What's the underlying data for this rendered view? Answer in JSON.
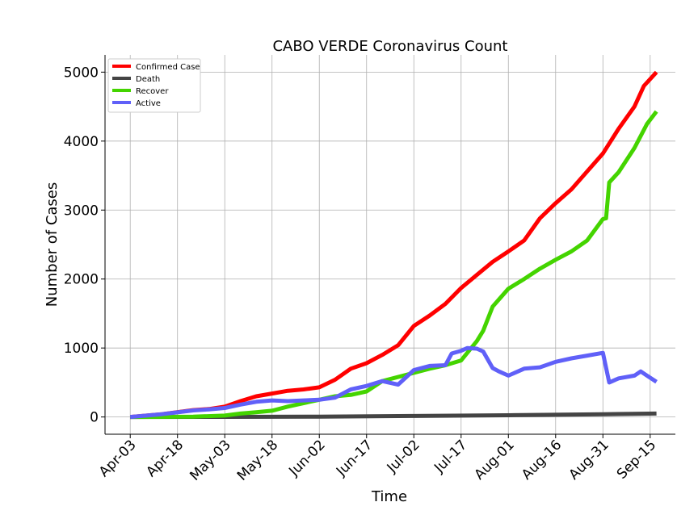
{
  "chart_data": {
    "type": "line",
    "title": "CABO VERDE Coronavirus Count",
    "xlabel": "Time",
    "ylabel": "Number of Cases",
    "x_tick_labels": [
      "Apr-03",
      "Apr-18",
      "May-03",
      "May-18",
      "Jun-02",
      "Jun-17",
      "Jul-02",
      "Jul-17",
      "Aug-01",
      "Aug-16",
      "Aug-31",
      "Sep-15"
    ],
    "x_tick_days": [
      0,
      15,
      30,
      45,
      60,
      75,
      90,
      105,
      120,
      135,
      150,
      165
    ],
    "xlim": [
      -8,
      173
    ],
    "ylim": [
      -250,
      5250
    ],
    "y_ticks": [
      0,
      1000,
      2000,
      3000,
      4000,
      5000
    ],
    "grid": true,
    "legend_position": "top-left",
    "series": [
      {
        "name": "Confirmed Case",
        "color": "#ff0000",
        "x": [
          0,
          10,
          20,
          25,
          30,
          35,
          40,
          45,
          50,
          55,
          60,
          65,
          70,
          75,
          80,
          85,
          90,
          95,
          100,
          105,
          110,
          115,
          120,
          125,
          130,
          135,
          140,
          145,
          150,
          155,
          160,
          163,
          167
        ],
        "y": [
          0,
          40,
          100,
          115,
          150,
          230,
          300,
          340,
          380,
          400,
          430,
          540,
          700,
          780,
          900,
          1040,
          1320,
          1470,
          1640,
          1870,
          2060,
          2250,
          2400,
          2560,
          2880,
          3100,
          3300,
          3560,
          3820,
          4180,
          4500,
          4800,
          5000
        ]
      },
      {
        "name": "Death",
        "color": "#444444",
        "x": [
          0,
          30,
          60,
          90,
          120,
          150,
          167
        ],
        "y": [
          0,
          2,
          5,
          15,
          25,
          40,
          50
        ]
      },
      {
        "name": "Recover",
        "color": "#44d400",
        "x": [
          0,
          20,
          30,
          35,
          40,
          45,
          50,
          55,
          60,
          65,
          70,
          75,
          80,
          85,
          90,
          95,
          100,
          105,
          110,
          112,
          115,
          120,
          125,
          130,
          135,
          140,
          145,
          150,
          151,
          152,
          155,
          160,
          164,
          167
        ],
        "y": [
          0,
          5,
          20,
          50,
          70,
          90,
          150,
          200,
          250,
          300,
          320,
          370,
          520,
          580,
          640,
          700,
          750,
          820,
          1100,
          1250,
          1600,
          1860,
          2000,
          2150,
          2280,
          2400,
          2560,
          2870,
          2880,
          3400,
          3550,
          3900,
          4250,
          4430
        ]
      },
      {
        "name": "Active",
        "color": "#6060f8",
        "x": [
          0,
          10,
          20,
          25,
          30,
          35,
          40,
          45,
          50,
          55,
          60,
          65,
          70,
          75,
          80,
          85,
          90,
          95,
          100,
          102,
          105,
          107,
          110,
          112,
          115,
          117,
          120,
          125,
          130,
          135,
          140,
          145,
          150,
          152,
          155,
          160,
          162,
          164,
          167
        ],
        "y": [
          0,
          40,
          95,
          110,
          130,
          180,
          220,
          240,
          230,
          240,
          250,
          280,
          400,
          450,
          520,
          470,
          680,
          740,
          750,
          920,
          960,
          1000,
          990,
          950,
          710,
          660,
          600,
          700,
          720,
          800,
          850,
          890,
          930,
          500,
          560,
          600,
          660,
          600,
          510
        ]
      }
    ]
  }
}
